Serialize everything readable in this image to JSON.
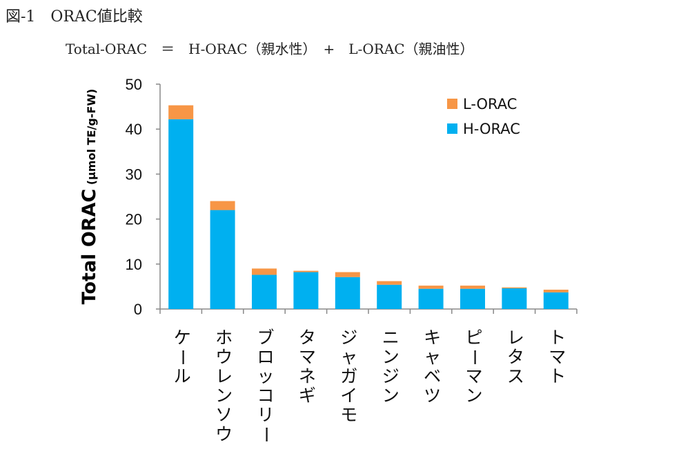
{
  "figure": {
    "title": "図-1　ORAC値比較",
    "formula": "Total-ORAC　＝　H-ORAC（親水性）　+　L-ORAC（親油性）"
  },
  "chart_data": {
    "type": "bar",
    "stacked": true,
    "ylabel_main": "Total ORAC",
    "ylabel_unit": "(μmol TE/g-FW)",
    "xlabel": "",
    "ylim": [
      0,
      50
    ],
    "yticks": [
      0,
      10,
      20,
      30,
      40,
      50
    ],
    "grid": false,
    "legend_position": "top-right",
    "categories": [
      "ケール",
      "ホウレンソウ",
      "ブロッコリー",
      "タマネギ",
      "ジャガイモ",
      "ニンジン",
      "キャベツ",
      "ピーマン",
      "レタス",
      "トマト"
    ],
    "series": [
      {
        "name": "H-ORAC",
        "color": "#00B0F0",
        "values": [
          42.2,
          22.0,
          7.6,
          8.2,
          7.1,
          5.4,
          4.5,
          4.5,
          4.6,
          3.7
        ]
      },
      {
        "name": "L-ORAC",
        "color": "#F79646",
        "values": [
          3.1,
          2.0,
          1.4,
          0.3,
          1.1,
          0.8,
          0.7,
          0.7,
          0.2,
          0.6
        ]
      }
    ]
  }
}
